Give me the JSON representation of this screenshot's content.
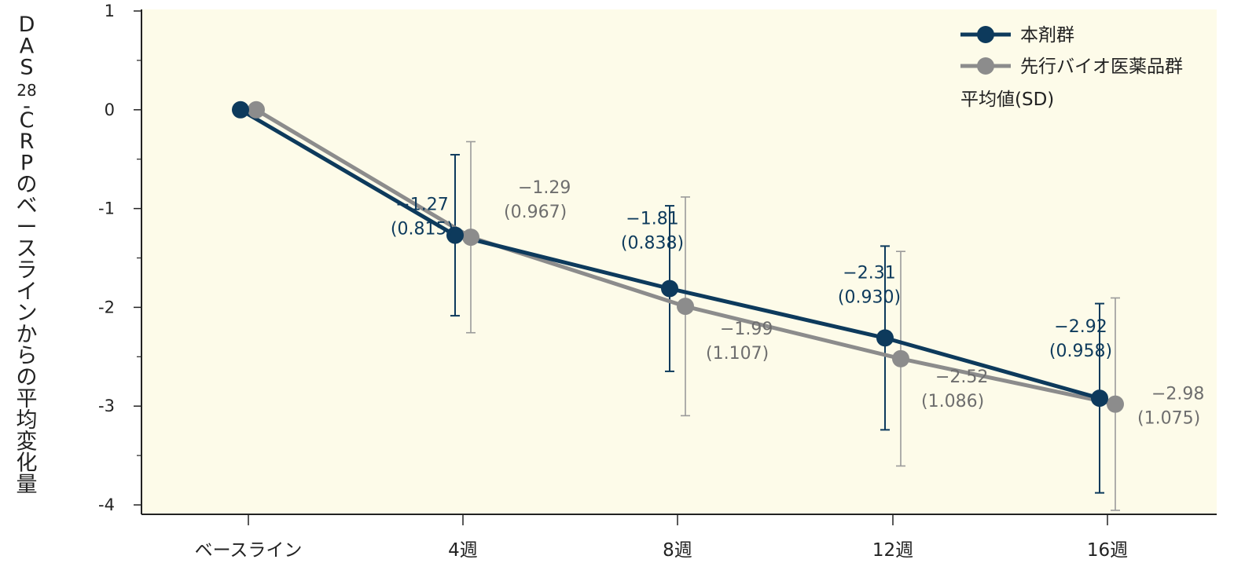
{
  "chart_data": {
    "type": "line",
    "ylabel_parts": [
      "D",
      "A",
      "S",
      "28",
      "-",
      "C",
      "R",
      "P",
      "の",
      "ベ",
      "ー",
      "ス",
      "ラ",
      "イ",
      "ン",
      "か",
      "ら",
      "の",
      "平",
      "均",
      "変",
      "化",
      "量"
    ],
    "ylim": [
      -4,
      1
    ],
    "yticks": [
      1,
      0,
      -1,
      -2,
      -3,
      -4
    ],
    "ytick_labels": [
      "1",
      "0",
      "-1",
      "-2",
      "-3",
      "-4"
    ],
    "categories": [
      "ベースライン",
      "4週",
      "8週",
      "12週",
      "16週"
    ],
    "grid": false,
    "legend_position": "top-right",
    "legend_note": "平均値(SD)",
    "series": [
      {
        "name": "本剤群",
        "color": "#0d3a5c",
        "values": [
          0,
          -1.27,
          -1.81,
          -2.31,
          -2.92
        ],
        "sd": [
          null,
          0.815,
          0.838,
          0.93,
          0.958
        ],
        "labels": [
          null,
          "−1.27",
          "−1.81",
          "−2.31",
          "−2.92"
        ],
        "sd_labels": [
          null,
          "(0.815)",
          "(0.838)",
          "(0.930)",
          "(0.958)"
        ]
      },
      {
        "name": "先行バイオ医薬品群",
        "color": "#8c8c8c",
        "values": [
          0,
          -1.29,
          -1.99,
          -2.52,
          -2.98
        ],
        "sd": [
          null,
          0.967,
          1.107,
          1.086,
          1.075
        ],
        "labels": [
          null,
          "−1.29",
          "−1.99",
          "−2.52",
          "−2.98"
        ],
        "sd_labels": [
          null,
          "(0.967)",
          "(1.107)",
          "(1.086)",
          "(1.075)"
        ]
      }
    ]
  },
  "colors": {
    "plot_background": "#fdfbe9",
    "axis": "#222222",
    "error_bar_grey": "#9a9a9a"
  }
}
